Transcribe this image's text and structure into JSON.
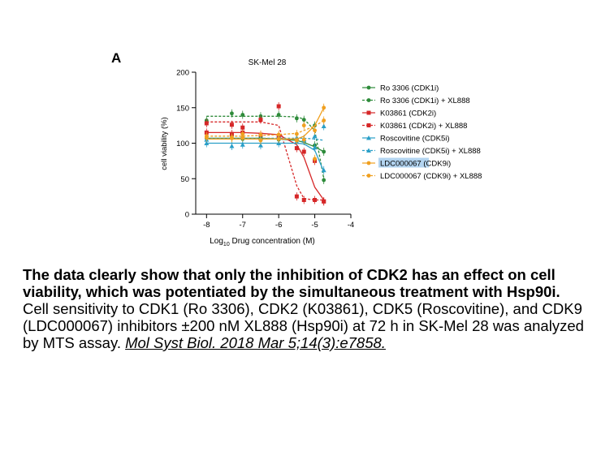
{
  "panel_label": "A",
  "chart_data": {
    "type": "line",
    "title": "SK-Mel 28",
    "xlabel_prefix": "Log",
    "xlabel_sub": "10",
    "xlabel_suffix": " Drug concentration (M)",
    "ylabel": "cell viability (%)",
    "xlim": [
      -8.3,
      -4
    ],
    "ylim": [
      0,
      200
    ],
    "xticks": [
      -8,
      -7,
      -6,
      -5,
      -4
    ],
    "yticks": [
      0,
      50,
      100,
      150,
      200
    ],
    "legend_placement": "right",
    "x": [
      -8,
      -7.3,
      -7,
      -6.5,
      -6,
      -5.5,
      -5.3,
      -5,
      -4.75
    ],
    "series": [
      {
        "name": "Ro 3306 (CDK1i)",
        "color": "#2e8b3a",
        "marker": "circle",
        "dashed": false,
        "values": [
          107,
          110,
          106,
          108,
          105,
          104,
          103,
          97,
          88
        ],
        "fit": [
          107,
          107,
          107,
          107,
          106,
          104,
          101,
          95,
          88
        ]
      },
      {
        "name": "Ro 3306 (CDK1i) + XL888",
        "color": "#2e8b3a",
        "marker": "circle",
        "dashed": true,
        "values": [
          132,
          142,
          140,
          138,
          140,
          135,
          133,
          125,
          48
        ],
        "fit": [
          138,
          138,
          138,
          138,
          138,
          137,
          134,
          118,
          50
        ]
      },
      {
        "name": "K03861 (CDK2i)",
        "color": "#d62728",
        "marker": "square",
        "dashed": false,
        "values": [
          115,
          113,
          115,
          112,
          110,
          93,
          88,
          75,
          18
        ],
        "fit": [
          115,
          115,
          115,
          114,
          112,
          98,
          80,
          38,
          20
        ]
      },
      {
        "name": "K03861 (CDK2i) + XL888",
        "color": "#d62728",
        "marker": "square",
        "dashed": true,
        "values": [
          128,
          126,
          122,
          133,
          152,
          25,
          20,
          20,
          18
        ],
        "fit": [
          130,
          130,
          130,
          130,
          125,
          40,
          22,
          20,
          20
        ]
      },
      {
        "name": "Roscovitine (CDK5i)",
        "color": "#2a9fc8",
        "marker": "triangle",
        "dashed": false,
        "values": [
          100,
          96,
          98,
          97,
          100,
          102,
          104,
          94,
          62
        ],
        "fit": [
          100,
          100,
          100,
          100,
          100,
          100,
          99,
          90,
          60
        ]
      },
      {
        "name": "Roscovitine (CDK5i) + XL888",
        "color": "#2a9fc8",
        "marker": "triangle",
        "dashed": true,
        "values": [
          105,
          108,
          110,
          107,
          108,
          108,
          106,
          110,
          124
        ],
        "fit": [
          107,
          107,
          107,
          107,
          107,
          107,
          107,
          106,
          104
        ]
      },
      {
        "name": "LDC000067 (CDK9i)",
        "color": "#f0a020",
        "marker": "circle",
        "dashed": false,
        "values": [
          108,
          107,
          108,
          104,
          106,
          104,
          105,
          78,
          150
        ],
        "fit": [
          106,
          106,
          106,
          106,
          106,
          106,
          110,
          125,
          150
        ]
      },
      {
        "name": "LDC000067 (CDK9i) + XL888",
        "color": "#f0a020",
        "marker": "circle",
        "dashed": true,
        "values": [
          110,
          108,
          113,
          112,
          112,
          113,
          125,
          118,
          132
        ],
        "fit": [
          110,
          110,
          110,
          111,
          112,
          114,
          118,
          124,
          132
        ]
      }
    ]
  },
  "caption": {
    "bold": "The data clearly show that only the inhibition of CDK2 has an effect on cell viability, which was potentiated by the simultaneous treatment with Hsp90i.",
    "body": "Cell sensitivity to CDK1 (Ro 3306), CDK2 (K03861), CDK5 (Roscovitine), and CDK9 (LDC000067) inhibitors  ±200 nM XL888 (Hsp90i) at 72 h in SK-Mel 28 was analyzed by MTS assay. ",
    "reference": "Mol Syst Biol. 2018 Mar 5;14(3):e7858."
  }
}
